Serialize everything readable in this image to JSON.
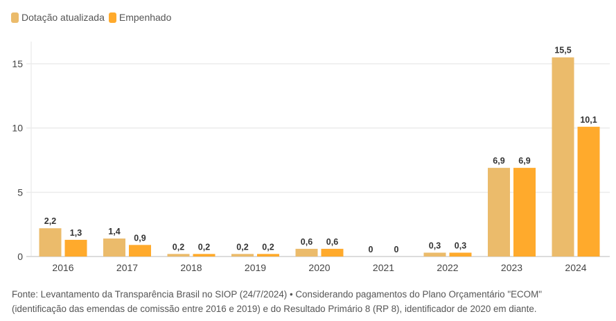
{
  "chart_data": {
    "type": "bar",
    "categories": [
      "2016",
      "2017",
      "2018",
      "2019",
      "2020",
      "2021",
      "2022",
      "2023",
      "2024"
    ],
    "series": [
      {
        "name": "Dotação atualizada",
        "color": "#EBBB6B",
        "values": [
          2.2,
          1.4,
          0.2,
          0.2,
          0.6,
          0,
          0.3,
          6.9,
          15.5
        ],
        "labels": [
          "2,2",
          "1,4",
          "0,2",
          "0,2",
          "0,6",
          "0",
          "0,3",
          "6,9",
          "15,5"
        ]
      },
      {
        "name": "Empenhado",
        "color": "#FFAA2C",
        "values": [
          1.3,
          0.9,
          0.2,
          0.2,
          0.6,
          0,
          0.3,
          6.9,
          10.1
        ],
        "labels": [
          "1,3",
          "0,9",
          "0,2",
          "0,2",
          "0,6",
          "0",
          "0,3",
          "6,9",
          "10,1"
        ]
      }
    ],
    "yticks": [
      0,
      5,
      10,
      15
    ],
    "ylim": [
      0,
      16.5
    ],
    "grid": true,
    "legend": "top-left"
  },
  "source_note": {
    "line1": "Fonte: Levantamento da Transparência Brasil no SIOP (24/7/2024) • Considerando pagamentos do Plano Orçamentário \"ECOM\"",
    "line2": "(identificação das emendas de comissão entre 2016 e 2019) e do Resultado Primário 8 (RP 8), identificador de 2020 em diante."
  }
}
